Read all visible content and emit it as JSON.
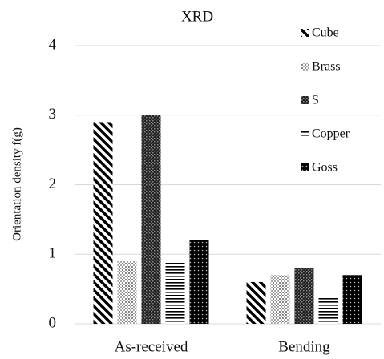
{
  "chart_data": {
    "type": "bar",
    "title": "XRD",
    "y_label": "Orientation density f(g)",
    "categories": [
      "As-received",
      "Bending"
    ],
    "series": [
      {
        "name": "Cube",
        "color": "#000000",
        "pattern": "diagonal",
        "values": [
          2.9,
          0.6
        ]
      },
      {
        "name": "Brass",
        "color": "#000000",
        "pattern": "light-dots",
        "values": [
          0.9,
          0.7
        ]
      },
      {
        "name": "S",
        "color": "#000000",
        "pattern": "dense-checks",
        "values": [
          3.0,
          0.8
        ]
      },
      {
        "name": "Copper",
        "color": "#000000",
        "pattern": "horizontal",
        "values": [
          0.9,
          0.4
        ]
      },
      {
        "name": "Goss",
        "color": "#000000",
        "pattern": "solid-dots",
        "values": [
          1.2,
          0.7
        ]
      }
    ],
    "ylim": [
      0,
      4
    ],
    "yticks": [
      0,
      1,
      2,
      3,
      4
    ],
    "grid": true,
    "legend": "top-right"
  }
}
